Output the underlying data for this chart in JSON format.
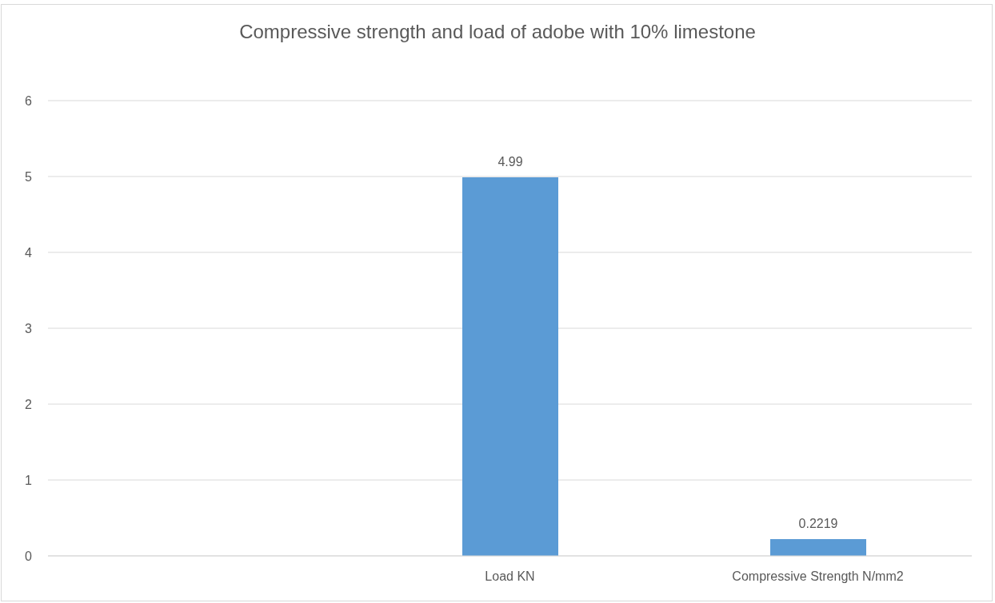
{
  "chart_data": {
    "type": "bar",
    "title": "Compressive strength and load of adobe with 10% limestone",
    "categories": [
      null,
      "Load KN",
      "Compressive Strength N/mm2"
    ],
    "values": [
      null,
      4.99,
      0.2219
    ],
    "color": "#5b9bd5",
    "ylim": [
      0,
      6
    ],
    "yticks": [
      0,
      1,
      2,
      3,
      4,
      5,
      6
    ],
    "grid": "y",
    "data_labels": true
  }
}
